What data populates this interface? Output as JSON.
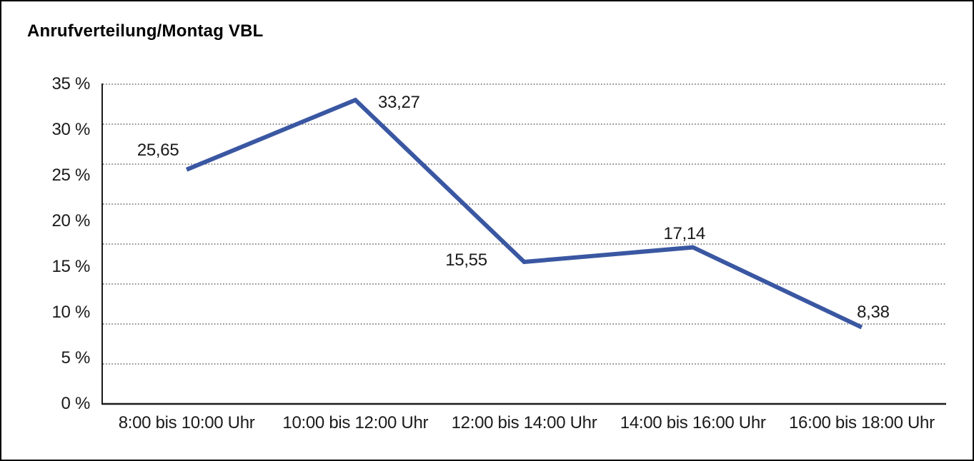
{
  "window": {
    "background_color": "#ffffff",
    "border_color": "#000000"
  },
  "chart_data": {
    "type": "line",
    "title": "Anrufverteilung/Montag VBL",
    "categories": [
      "8:00 bis 10:00 Uhr",
      "10:00 bis 12:00 Uhr",
      "12:00 bis 14:00 Uhr",
      "14:00 bis 16:00 Uhr",
      "16:00 bis 18:00 Uhr"
    ],
    "values": [
      25.65,
      33.27,
      15.55,
      17.14,
      8.38
    ],
    "value_labels": [
      "25,65",
      "33,27",
      "15,55",
      "17,14",
      "8,38"
    ],
    "xlabel": "",
    "ylabel": "",
    "y_tick_labels": [
      "35 %",
      "30 %",
      "25 %",
      "20 %",
      "15 %",
      "10 %",
      "5 %",
      "0 %"
    ],
    "y_tick_values": [
      35,
      30,
      25,
      20,
      15,
      10,
      5,
      0
    ],
    "ylim": [
      0,
      35
    ],
    "grid": true,
    "grid_divisions": 8,
    "grid_style": "dotted",
    "legend": false,
    "line_color": "#3A57A2",
    "axis_color": "#1a1a1a",
    "gridline_color": "#3c3c3c",
    "text_color": "#1a1a1a"
  }
}
